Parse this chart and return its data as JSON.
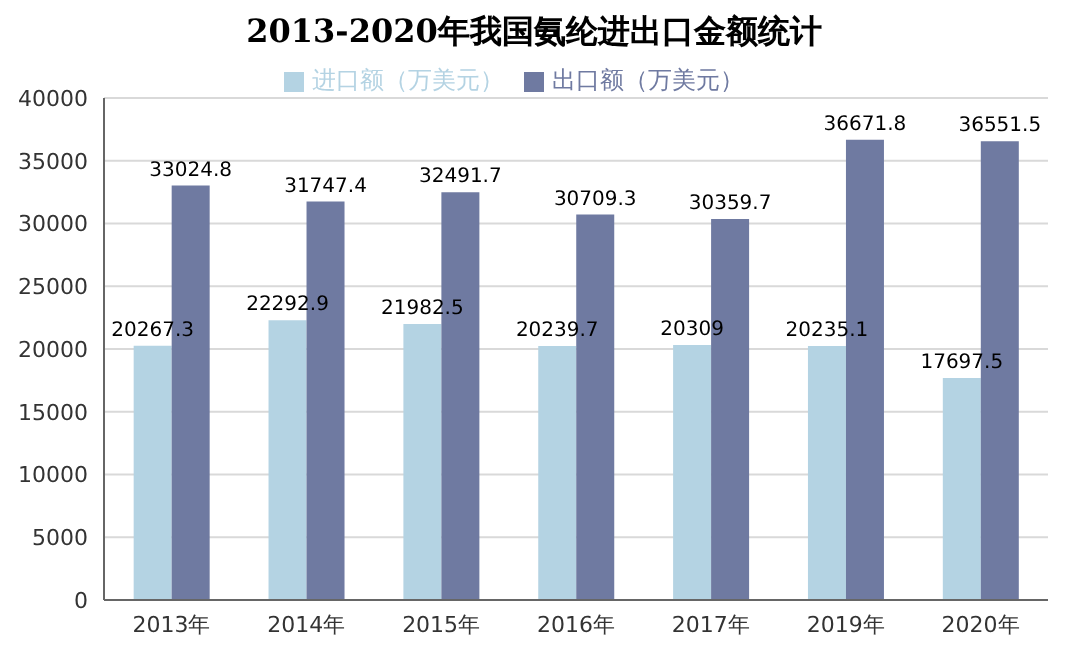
{
  "chart_data": {
    "type": "bar",
    "title": "2013-2020年我国氨纶进出口金额统计",
    "categories": [
      "2013年",
      "2014年",
      "2015年",
      "2016年",
      "2017年",
      "2019年",
      "2020年"
    ],
    "series": [
      {
        "name": "进口额（万美元）",
        "color": "#b4d3e3",
        "values": [
          20267.3,
          22292.9,
          21982.5,
          20239.7,
          20309,
          20235.1,
          17697.5
        ]
      },
      {
        "name": "出口额（万美元）",
        "color": "#6f7aa1",
        "values": [
          33024.8,
          31747.4,
          32491.7,
          30709.3,
          30359.7,
          36671.8,
          36551.5
        ]
      }
    ],
    "ylim": [
      0,
      40000
    ],
    "yticks": [
      0,
      5000,
      10000,
      15000,
      20000,
      25000,
      30000,
      35000,
      40000
    ],
    "grid": "y",
    "legend": "top",
    "data_labels": true
  }
}
